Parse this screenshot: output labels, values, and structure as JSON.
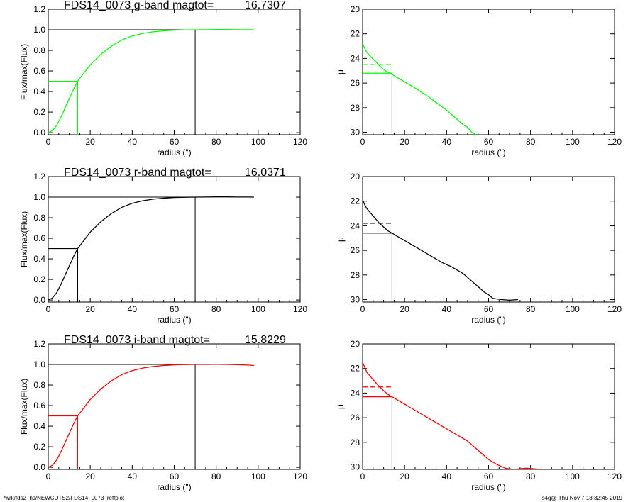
{
  "colors": {
    "g": "#00ff00",
    "r": "#000000",
    "i": "#ff0000",
    "frame": "#000000"
  },
  "footer": {
    "path": "/wrk/fds2_hs/NEWCUTS2/FDS14_0073_reffplot",
    "stamp": "s4g@  Thu Nov  7 18:32:45 2019"
  },
  "chart_data": [
    {
      "type": "line",
      "band": "g",
      "title": "FDS14_0073 g-band  magtot=",
      "magtot": "16.7307",
      "xlabel": "radius (\")",
      "ylabel": "Flux/max(Flux)",
      "xlim": [
        0,
        120
      ],
      "ylim": [
        -0.02,
        1.2
      ],
      "xticks": [
        "0",
        "20",
        "40",
        "60",
        "80",
        "100",
        "120"
      ],
      "yticks": [
        "0.0",
        "0.2",
        "0.4",
        "0.6",
        "0.8",
        "1.0",
        "1.2"
      ],
      "r_eff": 14,
      "r_tot": 70,
      "x": [
        0,
        2,
        4,
        6,
        8,
        10,
        12,
        14,
        17,
        20,
        25,
        30,
        35,
        40,
        45,
        50,
        55,
        60,
        65,
        70,
        75,
        80,
        85,
        90,
        95,
        98
      ],
      "y": [
        0.0,
        0.02,
        0.07,
        0.15,
        0.24,
        0.33,
        0.42,
        0.5,
        0.58,
        0.66,
        0.76,
        0.84,
        0.9,
        0.94,
        0.965,
        0.98,
        0.99,
        0.996,
        0.999,
        1.0,
        1.001,
        1.002,
        1.002,
        1.001,
        1.001,
        1.0
      ]
    },
    {
      "type": "line",
      "band": "g",
      "title": "",
      "xlabel": "radius (\")",
      "ylabel": "μ",
      "xlim": [
        0,
        120
      ],
      "ylim": [
        20,
        30.2
      ],
      "yreversed": true,
      "xticks": [
        "0",
        "20",
        "40",
        "60",
        "80",
        "100",
        "120"
      ],
      "yticks": [
        "20",
        "22",
        "24",
        "26",
        "28",
        "30"
      ],
      "r_eff": 14,
      "mu_eff": 25.2,
      "mu_mean_eff": 24.5,
      "x": [
        0,
        1,
        2,
        4,
        6,
        8,
        10,
        12,
        14,
        16,
        18,
        20,
        22,
        24,
        26,
        28,
        30,
        32,
        34,
        36,
        38,
        40,
        42,
        44,
        46,
        48,
        50,
        52,
        54
      ],
      "y": [
        22.8,
        23.2,
        23.5,
        23.9,
        24.2,
        24.6,
        24.9,
        25.1,
        25.3,
        25.5,
        25.7,
        25.9,
        26.1,
        26.3,
        26.5,
        26.75,
        26.95,
        27.2,
        27.45,
        27.7,
        27.95,
        28.2,
        28.5,
        28.8,
        29.1,
        29.4,
        29.6,
        30.0,
        30.3
      ]
    },
    {
      "type": "line",
      "band": "r",
      "title": "FDS14_0073 r-band  magtot=",
      "magtot": "16.0371",
      "xlabel": "radius (\")",
      "ylabel": "Flux/max(Flux)",
      "xlim": [
        0,
        120
      ],
      "ylim": [
        -0.02,
        1.2
      ],
      "xticks": [
        "0",
        "20",
        "40",
        "60",
        "80",
        "100",
        "120"
      ],
      "yticks": [
        "0.0",
        "0.2",
        "0.4",
        "0.6",
        "0.8",
        "1.0",
        "1.2"
      ],
      "r_eff": 14,
      "r_tot": 70,
      "x": [
        0,
        2,
        4,
        6,
        8,
        10,
        12,
        14,
        17,
        20,
        25,
        30,
        35,
        40,
        45,
        50,
        55,
        60,
        65,
        70,
        75,
        80,
        85,
        90,
        95,
        98
      ],
      "y": [
        0.0,
        0.02,
        0.07,
        0.15,
        0.24,
        0.33,
        0.42,
        0.5,
        0.58,
        0.66,
        0.76,
        0.84,
        0.9,
        0.94,
        0.965,
        0.98,
        0.99,
        0.996,
        0.999,
        1.0,
        1.001,
        1.002,
        1.002,
        1.001,
        1.001,
        1.0
      ]
    },
    {
      "type": "line",
      "band": "r",
      "title": "",
      "xlabel": "radius (\")",
      "ylabel": "μ",
      "xlim": [
        0,
        120
      ],
      "ylim": [
        20,
        30.2
      ],
      "yreversed": true,
      "xticks": [
        "0",
        "20",
        "40",
        "60",
        "80",
        "100",
        "120"
      ],
      "yticks": [
        "20",
        "22",
        "24",
        "26",
        "28",
        "30"
      ],
      "r_eff": 14,
      "mu_eff": 24.6,
      "mu_mean_eff": 23.8,
      "x": [
        0,
        1,
        2,
        4,
        6,
        8,
        10,
        12,
        14,
        16,
        18,
        20,
        22,
        24,
        26,
        28,
        30,
        32,
        34,
        36,
        38,
        40,
        42,
        44,
        46,
        48,
        50,
        52,
        54,
        56,
        58,
        60,
        62,
        66,
        70,
        74
      ],
      "y": [
        21.9,
        22.3,
        22.6,
        23.0,
        23.4,
        23.8,
        24.1,
        24.4,
        24.6,
        24.8,
        25.0,
        25.2,
        25.4,
        25.6,
        25.8,
        26.0,
        26.2,
        26.4,
        26.6,
        26.8,
        27.0,
        27.15,
        27.3,
        27.5,
        27.7,
        27.9,
        28.2,
        28.5,
        28.8,
        29.1,
        29.4,
        29.6,
        29.9,
        30.0,
        30.05,
        30.0
      ]
    },
    {
      "type": "line",
      "band": "i",
      "title": "FDS14_0073 i-band  magtot=",
      "magtot": "15.8229",
      "xlabel": "radius (\")",
      "ylabel": "Flux/max(Flux)",
      "xlim": [
        0,
        120
      ],
      "ylim": [
        -0.02,
        1.2
      ],
      "xticks": [
        "0",
        "20",
        "40",
        "60",
        "80",
        "100",
        "120"
      ],
      "yticks": [
        "0.0",
        "0.2",
        "0.4",
        "0.6",
        "0.8",
        "1.0",
        "1.2"
      ],
      "r_eff": 14,
      "r_tot": 70,
      "x": [
        0,
        2,
        4,
        6,
        8,
        10,
        12,
        14,
        17,
        20,
        25,
        30,
        35,
        40,
        45,
        50,
        55,
        60,
        65,
        70,
        75,
        80,
        85,
        90,
        95,
        98
      ],
      "y": [
        0.0,
        0.02,
        0.07,
        0.15,
        0.24,
        0.33,
        0.42,
        0.5,
        0.58,
        0.66,
        0.76,
        0.84,
        0.9,
        0.94,
        0.965,
        0.98,
        0.99,
        0.996,
        0.999,
        1.0,
        1.0,
        1.001,
        1.0,
        0.998,
        0.994,
        0.99
      ]
    },
    {
      "type": "line",
      "band": "i",
      "title": "",
      "xlabel": "radius (\")",
      "ylabel": "μ",
      "xlim": [
        0,
        120
      ],
      "ylim": [
        20,
        30.2
      ],
      "yreversed": true,
      "xticks": [
        "0",
        "20",
        "40",
        "60",
        "80",
        "100",
        "120"
      ],
      "yticks": [
        "20",
        "22",
        "24",
        "26",
        "28",
        "30"
      ],
      "r_eff": 14,
      "mu_eff": 24.3,
      "mu_mean_eff": 23.5,
      "x": [
        0,
        1,
        2,
        4,
        6,
        8,
        10,
        12,
        14,
        16,
        18,
        20,
        22,
        24,
        26,
        28,
        30,
        32,
        34,
        36,
        38,
        40,
        42,
        44,
        46,
        48,
        50,
        52,
        54,
        56,
        58,
        60,
        64,
        68,
        72,
        78,
        85
      ],
      "y": [
        21.5,
        21.9,
        22.3,
        22.7,
        23.1,
        23.5,
        23.8,
        24.1,
        24.3,
        24.5,
        24.7,
        24.9,
        25.1,
        25.3,
        25.5,
        25.7,
        25.9,
        26.1,
        26.3,
        26.5,
        26.7,
        26.9,
        27.1,
        27.3,
        27.5,
        27.7,
        27.9,
        28.2,
        28.5,
        28.8,
        29.1,
        29.4,
        29.8,
        30.1,
        30.2,
        30.1,
        30.2
      ]
    }
  ]
}
